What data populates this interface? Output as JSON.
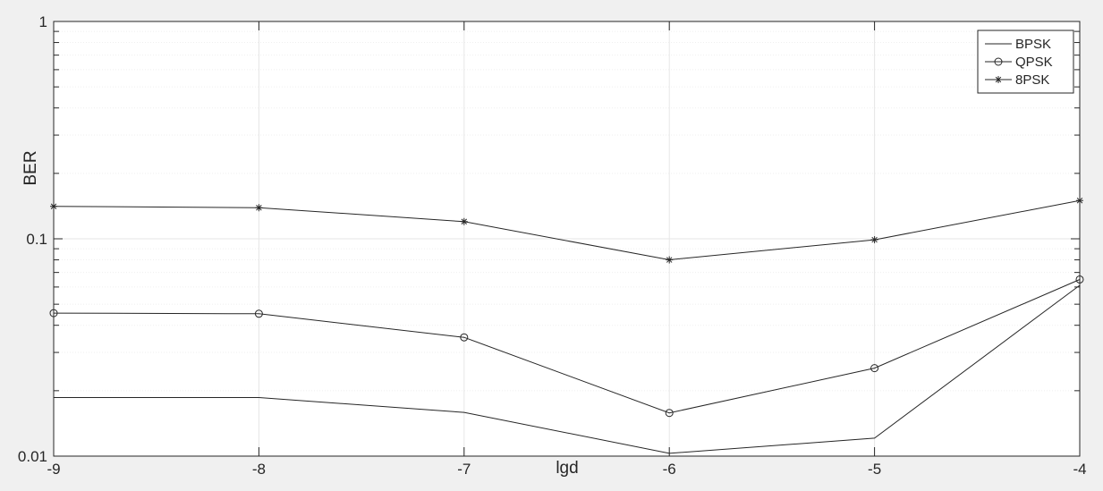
{
  "chart_data": {
    "type": "line",
    "xlabel": "lgd",
    "ylabel": "BER",
    "xlim": [
      -9,
      -4
    ],
    "ylim": [
      0.01,
      1
    ],
    "yscale": "log",
    "grid": true,
    "minor_grid": true,
    "legend_position": "top-right",
    "x_ticks": [
      "-9",
      "-8",
      "-7",
      "-6",
      "-5",
      "-4"
    ],
    "y_ticks": [
      "0.01",
      "0.1",
      "1"
    ],
    "x": [
      -9,
      -8,
      -7,
      -6,
      -5,
      -4
    ],
    "series": [
      {
        "name": "BPSK",
        "marker": "none",
        "values": [
          0.0186,
          0.0186,
          0.0159,
          0.0103,
          0.0121,
          0.0611
        ]
      },
      {
        "name": "QPSK",
        "marker": "circle",
        "values": [
          0.0455,
          0.0452,
          0.0352,
          0.0158,
          0.0254,
          0.065
        ]
      },
      {
        "name": "8PSK",
        "marker": "asterisk",
        "values": [
          0.141,
          0.139,
          0.12,
          0.08,
          0.099,
          0.15
        ]
      }
    ],
    "colors": {
      "line": "#262626",
      "grid": "#e6e6e6",
      "background": "#f0f0f0",
      "plot_bg": "#ffffff"
    }
  }
}
